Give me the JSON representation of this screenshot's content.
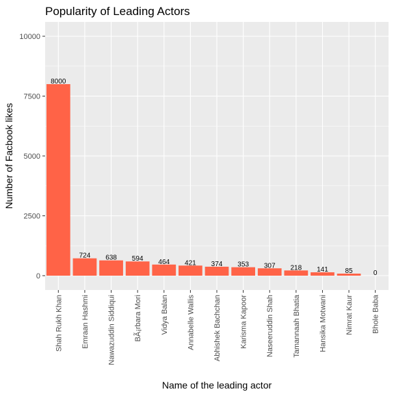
{
  "chart_data": {
    "type": "bar",
    "title": "Popularity of Leading Actors",
    "xlabel": "Name of the leading actor",
    "ylabel": "Number of Facbook likes",
    "categories": [
      "Shah Rukh Khan",
      "Emraan Hashmi",
      "Nawazuddin Siddiqui",
      "BÃ¡rbara Mori",
      "Vidya Balan",
      "Annabelle Wallis",
      "Abhishek Bachchan",
      "Karisma Kapoor",
      "Naseeruddin Shah",
      "Tamannaah Bhatia",
      "Hansika Motwani",
      "Nimrat Kaur",
      "Bhole Baba"
    ],
    "values": [
      8000,
      724,
      638,
      594,
      464,
      421,
      374,
      353,
      307,
      218,
      141,
      85,
      0
    ],
    "data_labels": [
      "8000",
      "724",
      "638",
      "594",
      "464",
      "421",
      "374",
      "353",
      "307",
      "218",
      "141",
      "85",
      "0"
    ],
    "ylim": [
      -600,
      10600
    ],
    "yticks": [
      0,
      2500,
      5000,
      7500,
      10000
    ],
    "ytick_labels": [
      "0",
      "2500",
      "5000",
      "7500",
      "10000"
    ],
    "grid": true,
    "bar_color": "#FF6347",
    "panel_color": "#EBEBEB"
  }
}
